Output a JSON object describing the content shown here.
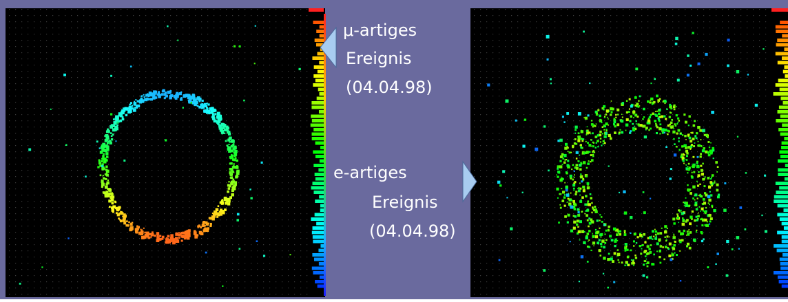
{
  "labels": [
    {
      "lines": [
        "μ-artiges",
        "Ereignis",
        "(04.04.98)"
      ]
    },
    {
      "lines": [
        "e-artiges",
        "Ereignis",
        "(04.04.98)"
      ]
    }
  ]
}
